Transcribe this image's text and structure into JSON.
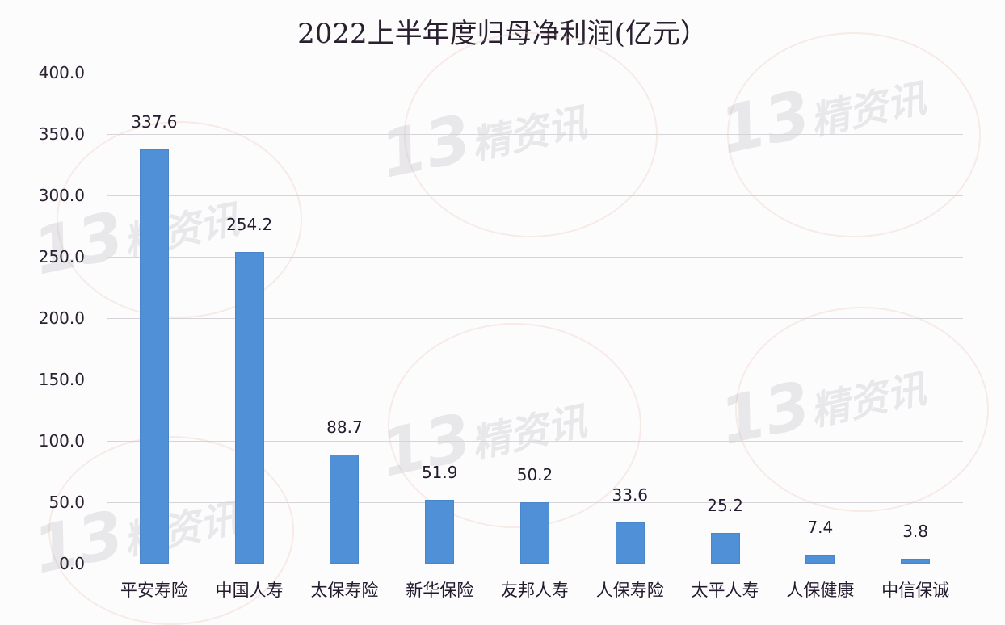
{
  "chart_data": {
    "type": "bar",
    "title": "2022上半年度归母净利润(亿元）",
    "xlabel": "",
    "ylabel": "",
    "ylim": [
      0,
      400
    ],
    "yticks": [
      "0.0",
      "50.0",
      "100.0",
      "150.0",
      "200.0",
      "250.0",
      "300.0",
      "350.0",
      "400.0"
    ],
    "grid": true,
    "legend": null,
    "categories": [
      "平安寿险",
      "中国人寿",
      "太保寿险",
      "新华保险",
      "友邦人寿",
      "人保寿险",
      "太平人寿",
      "人保健康",
      "中信保诚"
    ],
    "values": [
      337.6,
      254.2,
      88.7,
      51.9,
      50.2,
      33.6,
      25.2,
      7.4,
      3.8
    ],
    "value_labels": [
      "337.6",
      "254.2",
      "88.7",
      "51.9",
      "50.2",
      "33.6",
      "25.2",
      "7.4",
      "3.8"
    ],
    "bar_color": "#4f90d6"
  },
  "watermark": {
    "number": "13",
    "text": "精资讯"
  }
}
